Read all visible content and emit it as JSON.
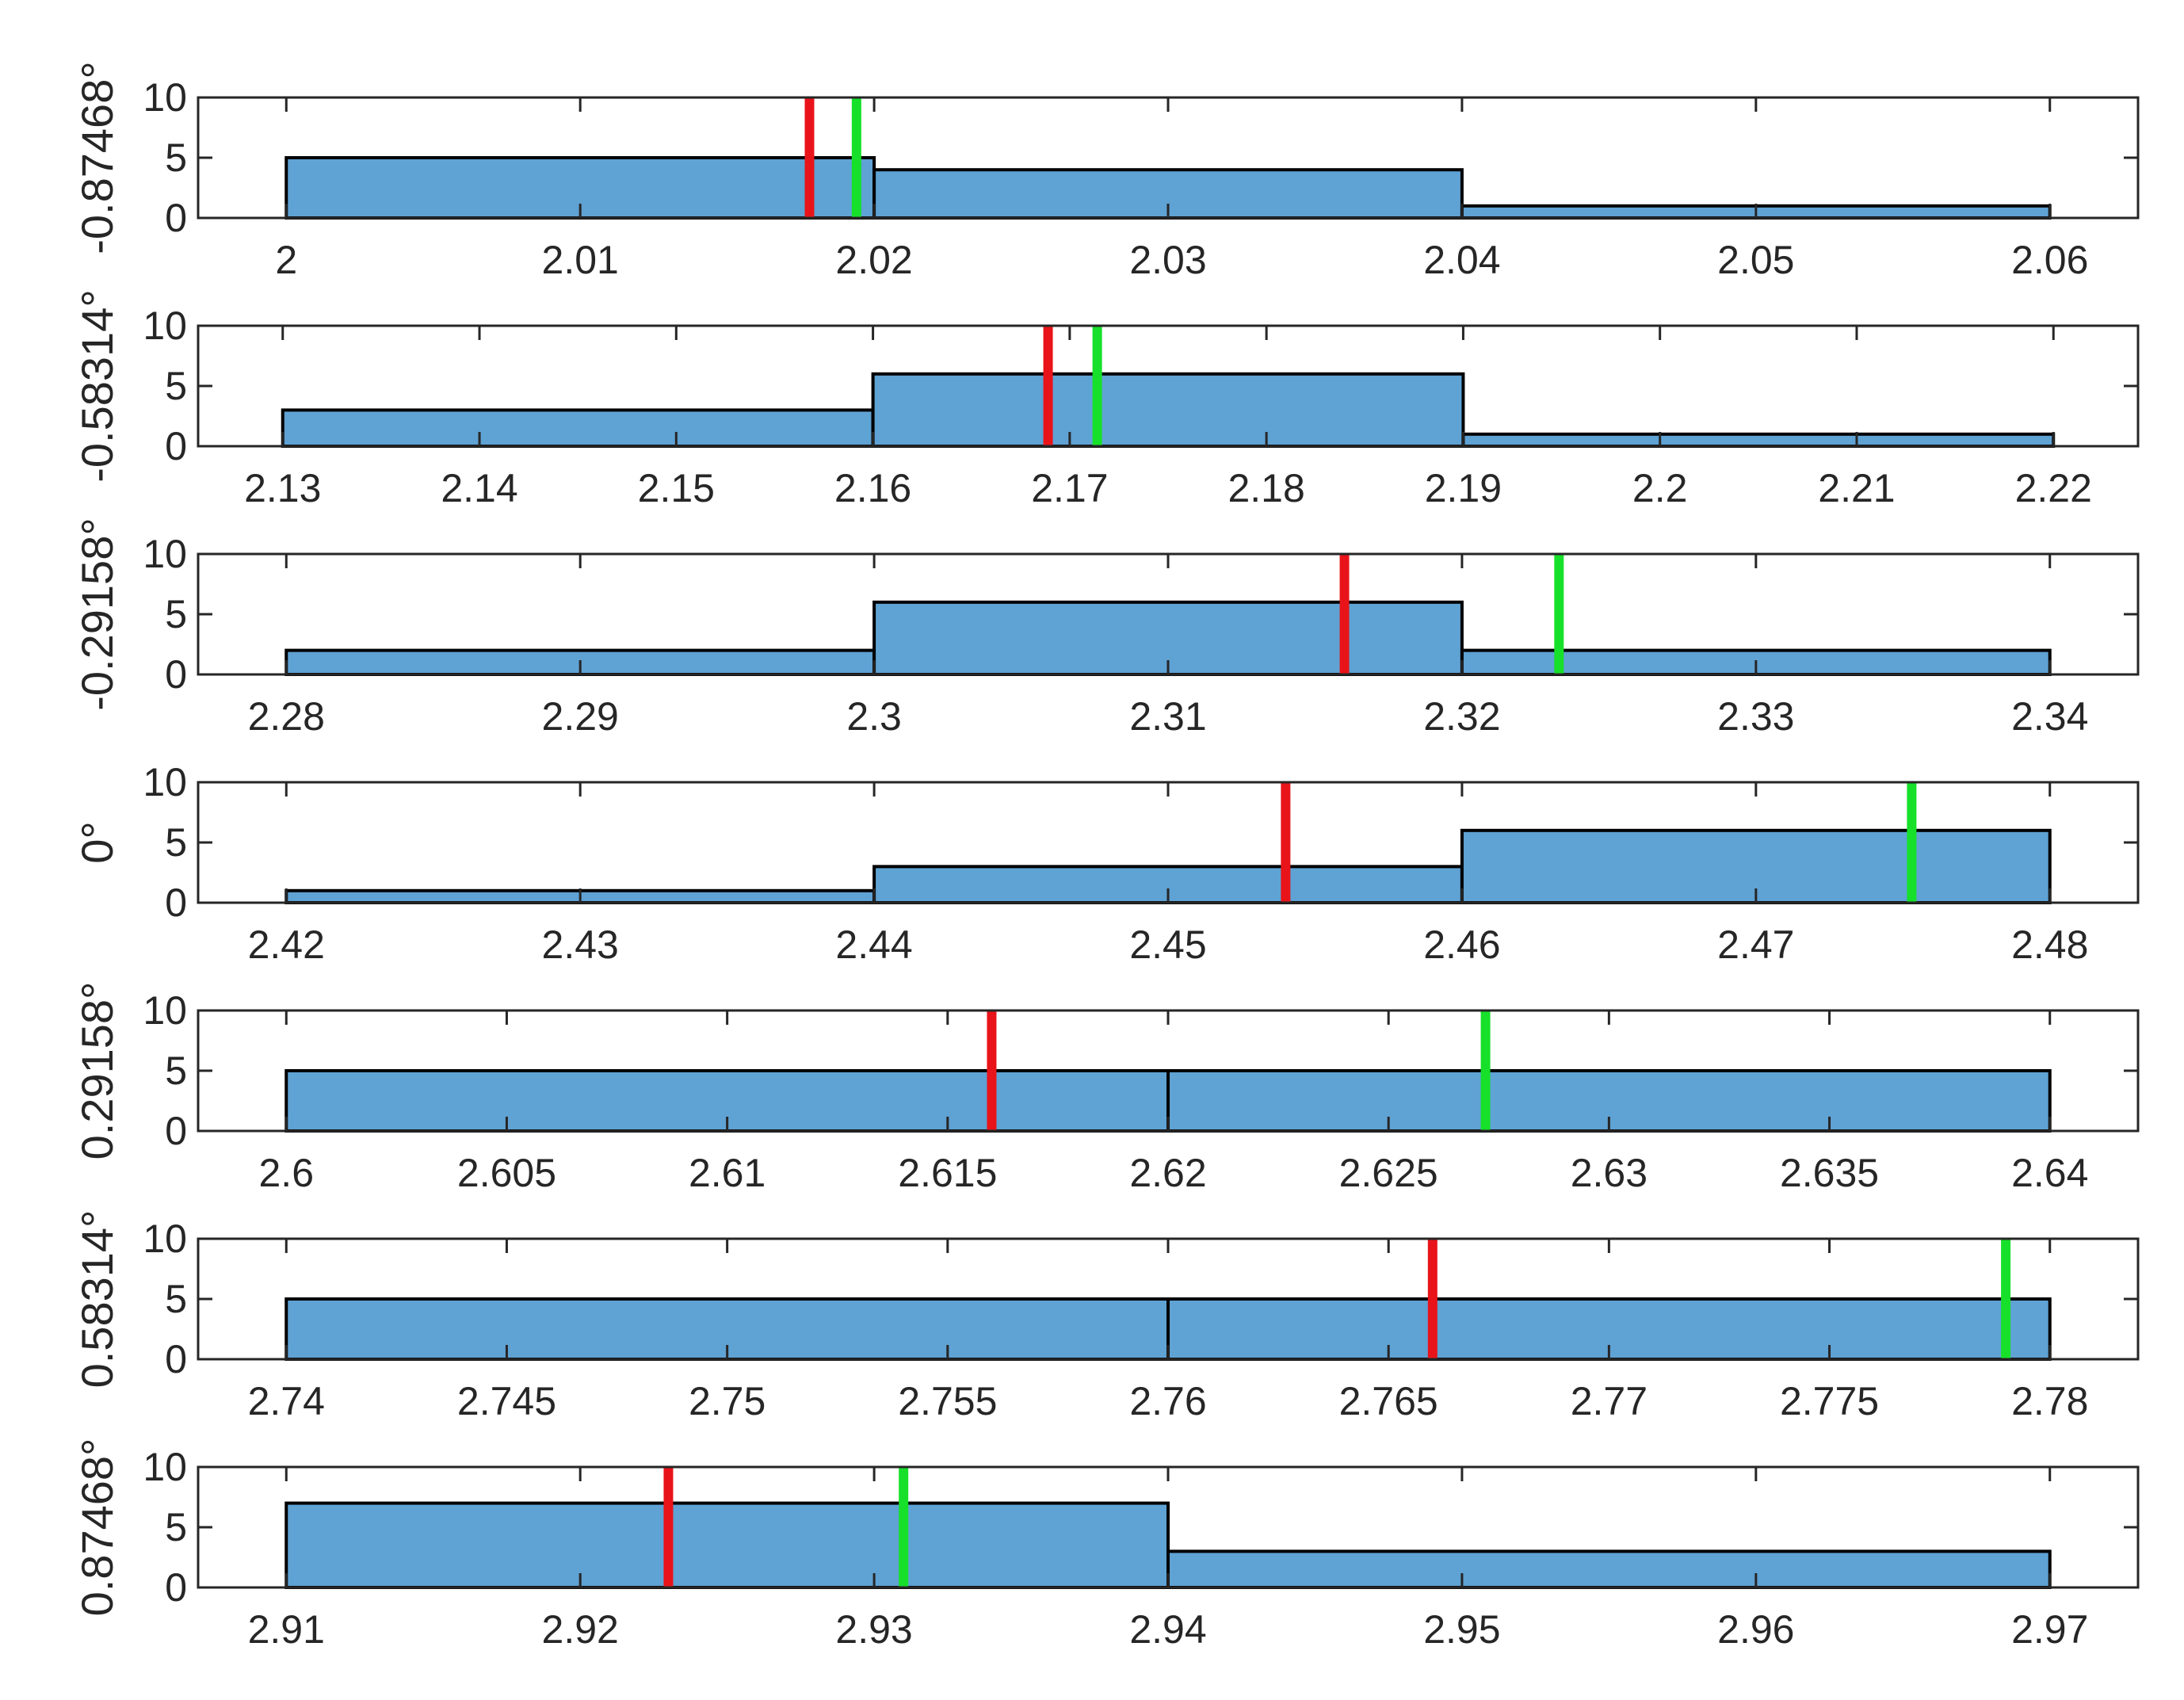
{
  "figure": {
    "bar_color": "#5fa2d4",
    "bar_edge_color": "#000000",
    "red_line_color": "#e8141a",
    "green_line_color": "#17e02a",
    "axis_color": "#262626"
  },
  "chart_data": [
    {
      "type": "bar",
      "ylabel": "-0.87468°",
      "xlim": [
        1.997,
        2.063
      ],
      "ylim": [
        0,
        10
      ],
      "xticks": [
        2,
        2.01,
        2.02,
        2.03,
        2.04,
        2.05,
        2.06
      ],
      "xtick_labels": [
        "2",
        "2.01",
        "2.02",
        "2.03",
        "2.04",
        "2.05",
        "2.06"
      ],
      "yticks": [
        0,
        5,
        10
      ],
      "ytick_labels": [
        "0",
        "5",
        "10"
      ],
      "bins": [
        {
          "start": 2.0,
          "end": 2.02,
          "count": 5
        },
        {
          "start": 2.02,
          "end": 2.04,
          "count": 4
        },
        {
          "start": 2.04,
          "end": 2.06,
          "count": 1
        }
      ],
      "red_line": 2.0178,
      "green_line": 2.0194
    },
    {
      "type": "bar",
      "ylabel": "-0.58314°",
      "xlim": [
        2.1257,
        2.2243
      ],
      "ylim": [
        0,
        10
      ],
      "xticks": [
        2.13,
        2.14,
        2.15,
        2.16,
        2.17,
        2.18,
        2.19,
        2.2,
        2.21,
        2.22
      ],
      "xtick_labels": [
        "2.13",
        "2.14",
        "2.15",
        "2.16",
        "2.17",
        "2.18",
        "2.19",
        "2.2",
        "2.21",
        "2.22"
      ],
      "yticks": [
        0,
        5,
        10
      ],
      "ytick_labels": [
        "0",
        "5",
        "10"
      ],
      "bins": [
        {
          "start": 2.13,
          "end": 2.16,
          "count": 3
        },
        {
          "start": 2.16,
          "end": 2.19,
          "count": 6
        },
        {
          "start": 2.19,
          "end": 2.22,
          "count": 1
        }
      ],
      "red_line": 2.1689,
      "green_line": 2.1714
    },
    {
      "type": "bar",
      "ylabel": "-0.29158°",
      "xlim": [
        2.277,
        2.343
      ],
      "ylim": [
        0,
        10
      ],
      "xticks": [
        2.28,
        2.29,
        2.3,
        2.31,
        2.32,
        2.33,
        2.34
      ],
      "xtick_labels": [
        "2.28",
        "2.29",
        "2.3",
        "2.31",
        "2.32",
        "2.33",
        "2.34"
      ],
      "yticks": [
        0,
        5,
        10
      ],
      "ytick_labels": [
        "0",
        "5",
        "10"
      ],
      "bins": [
        {
          "start": 2.28,
          "end": 2.3,
          "count": 2
        },
        {
          "start": 2.3,
          "end": 2.32,
          "count": 6
        },
        {
          "start": 2.32,
          "end": 2.34,
          "count": 2
        }
      ],
      "red_line": 2.316,
      "green_line": 2.3233
    },
    {
      "type": "bar",
      "ylabel": "0°",
      "xlim": [
        2.417,
        2.483
      ],
      "ylim": [
        0,
        10
      ],
      "xticks": [
        2.42,
        2.43,
        2.44,
        2.45,
        2.46,
        2.47,
        2.48
      ],
      "xtick_labels": [
        "2.42",
        "2.43",
        "2.44",
        "2.45",
        "2.46",
        "2.47",
        "2.48"
      ],
      "yticks": [
        0,
        5,
        10
      ],
      "ytick_labels": [
        "0",
        "5",
        "10"
      ],
      "bins": [
        {
          "start": 2.42,
          "end": 2.44,
          "count": 1
        },
        {
          "start": 2.44,
          "end": 2.46,
          "count": 3
        },
        {
          "start": 2.46,
          "end": 2.48,
          "count": 6
        }
      ],
      "red_line": 2.454,
      "green_line": 2.4753
    },
    {
      "type": "bar",
      "ylabel": "0.29158°",
      "xlim": [
        2.598,
        2.642
      ],
      "ylim": [
        0,
        10
      ],
      "xticks": [
        2.6,
        2.605,
        2.61,
        2.615,
        2.62,
        2.625,
        2.63,
        2.635,
        2.64
      ],
      "xtick_labels": [
        "2.6",
        "2.605",
        "2.61",
        "2.615",
        "2.62",
        "2.625",
        "2.63",
        "2.635",
        "2.64"
      ],
      "yticks": [
        0,
        5,
        10
      ],
      "ytick_labels": [
        "0",
        "5",
        "10"
      ],
      "bins": [
        {
          "start": 2.6,
          "end": 2.62,
          "count": 5
        },
        {
          "start": 2.62,
          "end": 2.64,
          "count": 5
        }
      ],
      "red_line": 2.616,
      "green_line": 2.6272
    },
    {
      "type": "bar",
      "ylabel": "0.58314°",
      "xlim": [
        2.738,
        2.782
      ],
      "ylim": [
        0,
        10
      ],
      "xticks": [
        2.74,
        2.745,
        2.75,
        2.755,
        2.76,
        2.765,
        2.77,
        2.775,
        2.78
      ],
      "xtick_labels": [
        "2.74",
        "2.745",
        "2.75",
        "2.755",
        "2.76",
        "2.765",
        "2.77",
        "2.775",
        "2.78"
      ],
      "yticks": [
        0,
        5,
        10
      ],
      "ytick_labels": [
        "0",
        "5",
        "10"
      ],
      "bins": [
        {
          "start": 2.74,
          "end": 2.76,
          "count": 5
        },
        {
          "start": 2.76,
          "end": 2.78,
          "count": 5
        }
      ],
      "red_line": 2.766,
      "green_line": 2.779
    },
    {
      "type": "bar",
      "ylabel": "0.87468°",
      "xlim": [
        2.907,
        2.973
      ],
      "ylim": [
        0,
        10
      ],
      "xticks": [
        2.91,
        2.92,
        2.93,
        2.94,
        2.95,
        2.96,
        2.97
      ],
      "xtick_labels": [
        "2.91",
        "2.92",
        "2.93",
        "2.94",
        "2.95",
        "2.96",
        "2.97"
      ],
      "yticks": [
        0,
        5,
        10
      ],
      "ytick_labels": [
        "0",
        "5",
        "10"
      ],
      "bins": [
        {
          "start": 2.91,
          "end": 2.94,
          "count": 7
        },
        {
          "start": 2.94,
          "end": 2.97,
          "count": 3
        }
      ],
      "red_line": 2.923,
      "green_line": 2.931
    }
  ]
}
